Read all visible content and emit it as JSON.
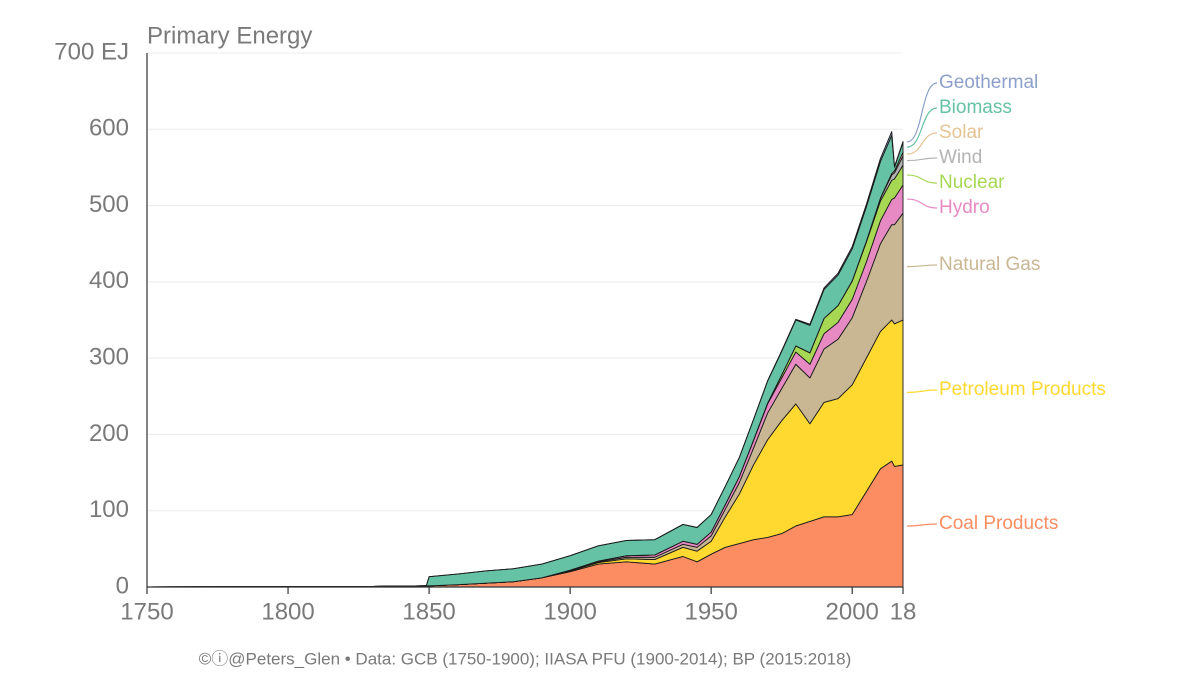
{
  "chart_data": {
    "type": "stacked-area",
    "title": "Primary Energy",
    "x": [
      1750,
      1800,
      1830,
      1849,
      1850,
      1860,
      1870,
      1880,
      1890,
      1900,
      1910,
      1920,
      1930,
      1940,
      1945,
      1950,
      1955,
      1960,
      1965,
      1970,
      1975,
      1980,
      1985,
      1990,
      1995,
      2000,
      2005,
      2010,
      2014,
      2015,
      2018
    ],
    "series": [
      {
        "name": "Coal Products",
        "color": "#fc8d62",
        "values": [
          0.1,
          0.4,
          0.8,
          1.5,
          1.5,
          3,
          5,
          7,
          12,
          20,
          30,
          33,
          30,
          40,
          33,
          43,
          52,
          57,
          62,
          65,
          70,
          80,
          86,
          92,
          92,
          95,
          125,
          155,
          165,
          158,
          160
        ]
      },
      {
        "name": "Petroleum Products",
        "color": "#ffd92f",
        "values": [
          0,
          0,
          0,
          0,
          0,
          0,
          0,
          0,
          0,
          1,
          2,
          4,
          6,
          12,
          14,
          17,
          40,
          65,
          98,
          128,
          148,
          160,
          128,
          150,
          155,
          170,
          175,
          180,
          185,
          187,
          190
        ]
      },
      {
        "name": "Natural Gas",
        "color": "#c9b794",
        "values": [
          0,
          0,
          0,
          0,
          0,
          0,
          0,
          0,
          0,
          0.5,
          1,
          2,
          3,
          4,
          5,
          7,
          10,
          15,
          22,
          35,
          42,
          52,
          60,
          70,
          78,
          88,
          100,
          115,
          125,
          130,
          140
        ]
      },
      {
        "name": "Hydro",
        "color": "#e78ac3",
        "values": [
          0,
          0,
          0,
          0,
          0,
          0,
          0,
          0,
          0,
          0.5,
          1,
          2,
          3,
          4,
          4,
          5,
          6,
          8,
          10,
          12,
          14,
          16,
          18,
          20,
          22,
          24,
          26,
          30,
          33,
          35,
          37
        ]
      },
      {
        "name": "Nuclear",
        "color": "#a6d854",
        "values": [
          0,
          0,
          0,
          0,
          0,
          0,
          0,
          0,
          0,
          0,
          0,
          0,
          0,
          0,
          0,
          0,
          0,
          0,
          0.5,
          1,
          4,
          8,
          15,
          20,
          22,
          24,
          26,
          26,
          25,
          25,
          26
        ]
      },
      {
        "name": "Wind",
        "color": "#b3b3b3",
        "values": [
          0,
          0,
          0,
          0,
          0,
          0,
          0,
          0,
          0,
          0,
          0,
          0,
          0,
          0,
          0,
          0,
          0,
          0,
          0,
          0,
          0,
          0,
          0,
          0,
          0.1,
          0.3,
          1,
          3.5,
          7,
          8,
          12
        ]
      },
      {
        "name": "Solar",
        "color": "#e5c494",
        "values": [
          0,
          0,
          0,
          0,
          0,
          0,
          0,
          0,
          0,
          0,
          0,
          0,
          0,
          0,
          0,
          0,
          0,
          0,
          0,
          0,
          0,
          0,
          0,
          0,
          0,
          0,
          0.1,
          0.3,
          2,
          2.5,
          5
        ]
      },
      {
        "name": "Biomass",
        "color": "#66c2a5",
        "values": [
          0,
          0,
          0,
          0,
          12,
          14,
          16,
          17,
          18,
          19,
          20,
          20,
          20,
          22,
          22,
          23,
          24,
          25,
          27,
          29,
          31,
          34,
          36,
          38,
          40,
          42,
          45,
          48,
          50,
          5,
          13
        ]
      },
      {
        "name": "Geothermal",
        "color": "#8da0cb",
        "values": [
          0,
          0,
          0,
          0,
          0,
          0,
          0,
          0,
          0,
          0,
          0,
          0,
          0,
          0,
          0,
          0,
          0,
          0,
          0,
          0.5,
          0.7,
          1,
          1.5,
          2,
          2.5,
          3,
          3.5,
          4,
          5,
          1,
          1
        ]
      }
    ],
    "xlim": [
      1750,
      2018
    ],
    "xticks": [
      1750,
      1800,
      1850,
      1900,
      1950,
      2000,
      {
        "value": 2018,
        "label": "18"
      }
    ],
    "ylim": [
      0,
      700
    ],
    "yticks": [
      0,
      100,
      200,
      300,
      400,
      500,
      600,
      {
        "value": 700,
        "label": "700 EJ"
      }
    ],
    "grid": true,
    "footer": "©ⓘ@Peters_Glen  •  Data: GCB (1750-1900); IIASA PFU (1900-2014); BP (2015:2018)"
  }
}
